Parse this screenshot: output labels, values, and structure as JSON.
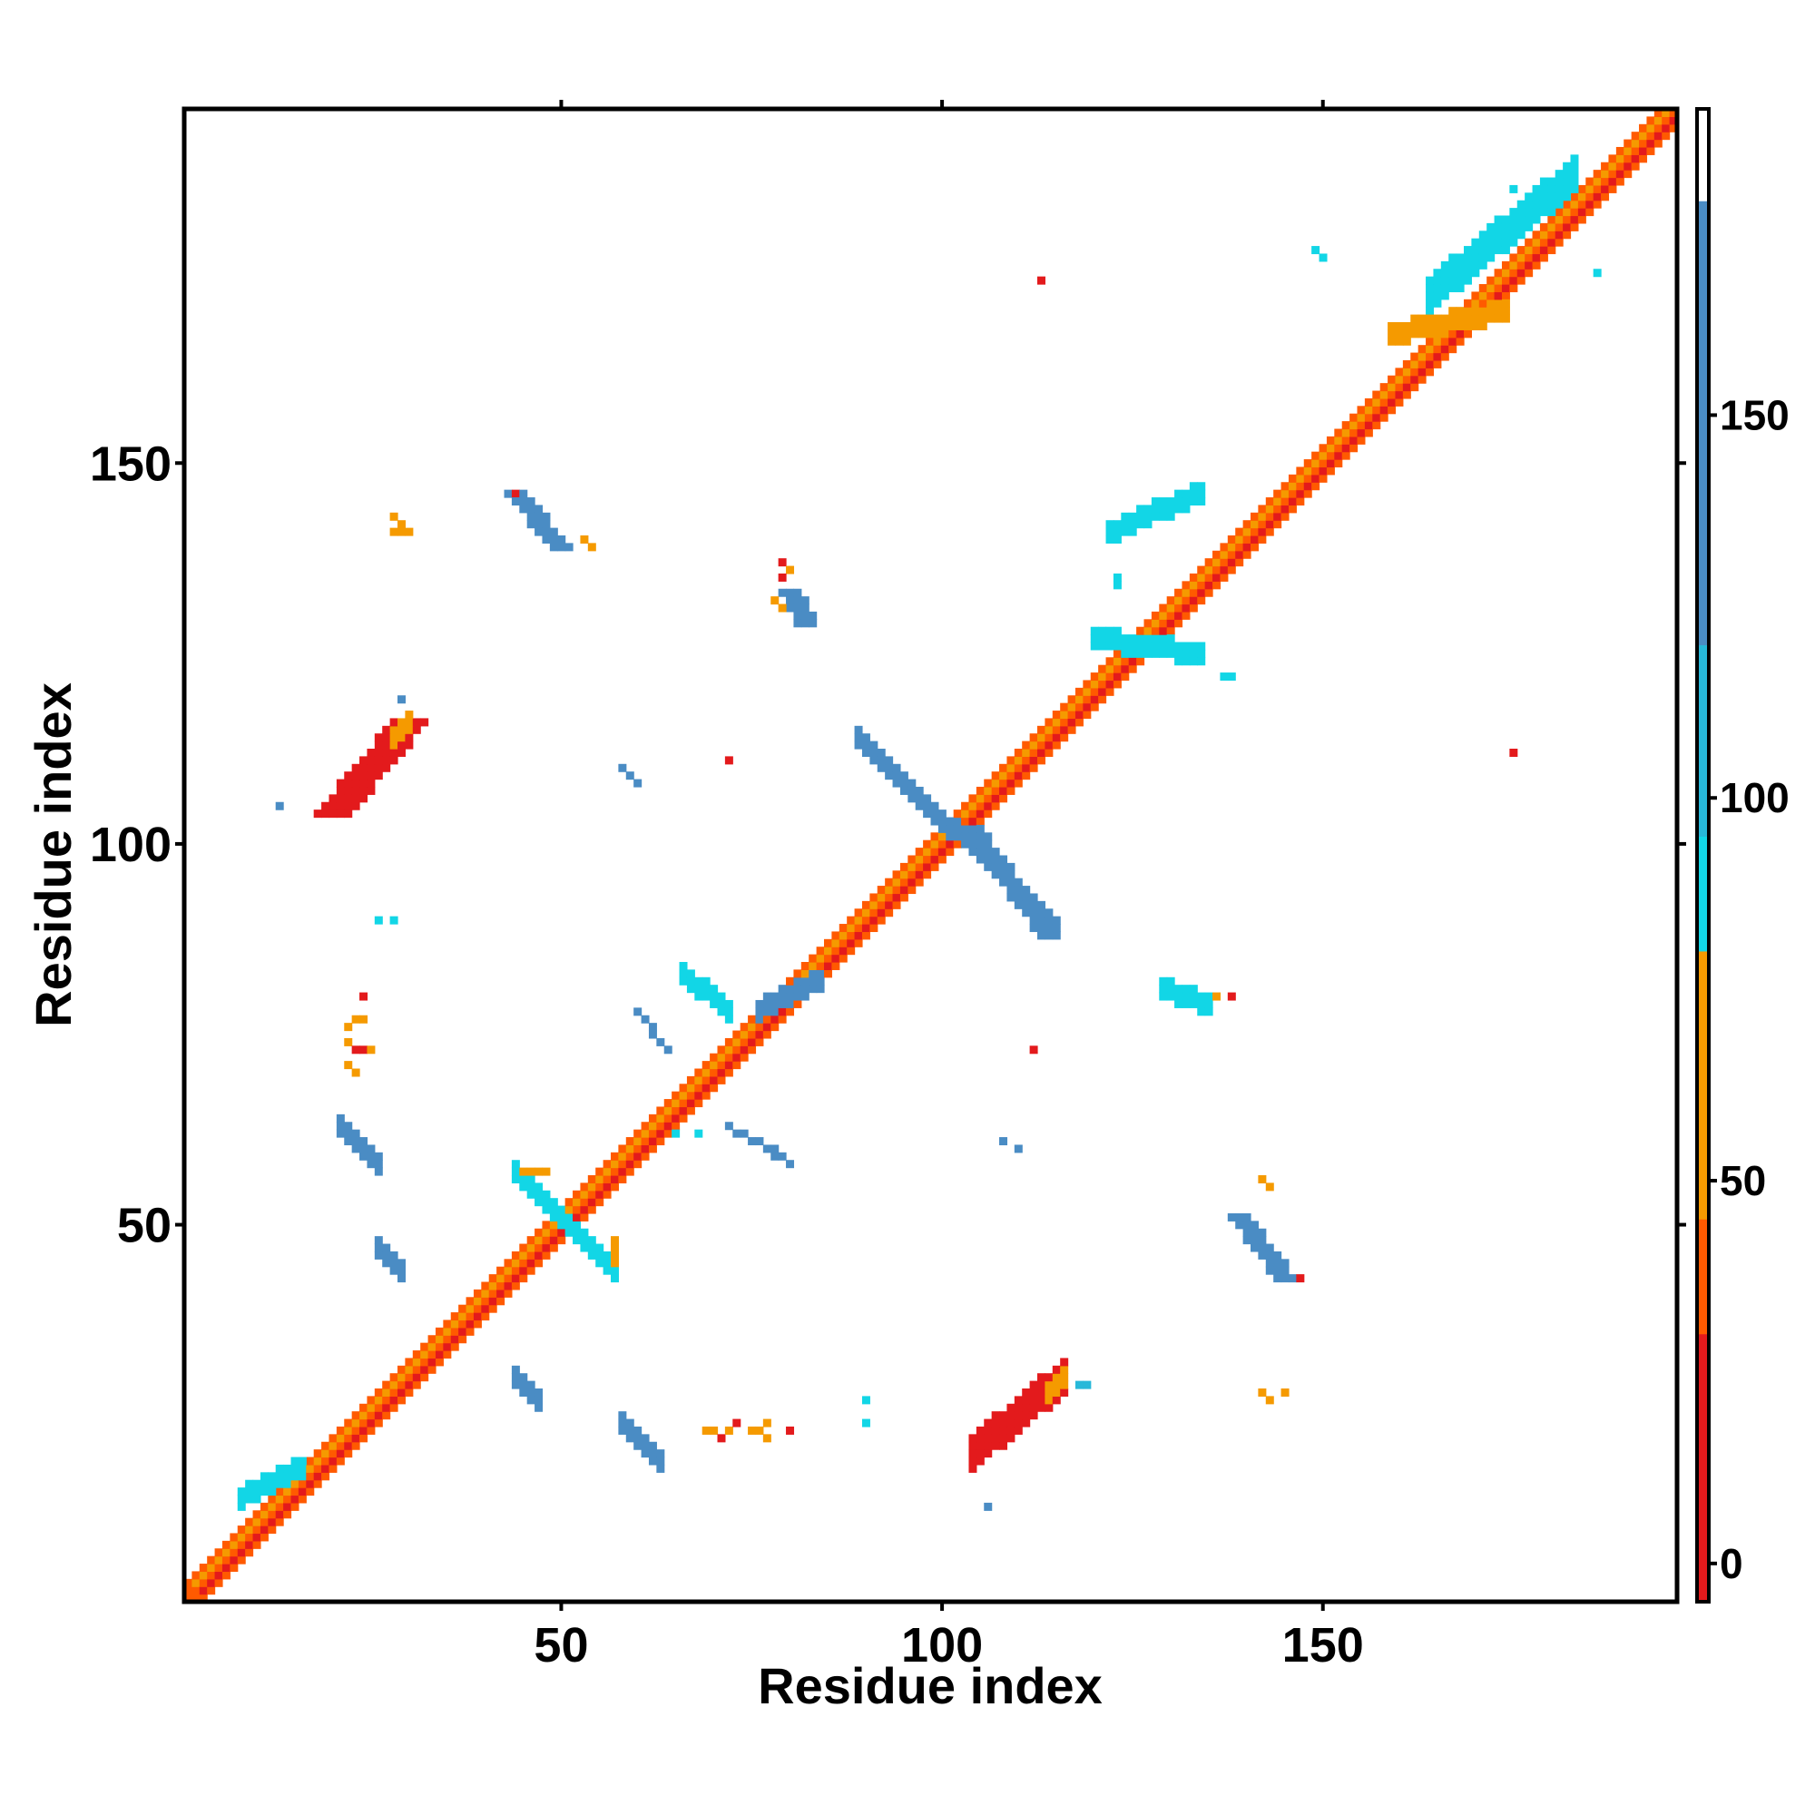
{
  "chart_data": {
    "type": "heatmap",
    "title": "",
    "xlabel": "Residue index",
    "ylabel": "Residue index",
    "xlim": [
      1,
      196
    ],
    "ylim": [
      1,
      196
    ],
    "x_ticks": [
      50,
      100,
      150
    ],
    "y_ticks": [
      50,
      100,
      150
    ],
    "colorbar": {
      "range": [
        -5,
        190
      ],
      "ticks": [
        0,
        50,
        100,
        150
      ],
      "bands": [
        {
          "from": -5,
          "to": 30,
          "color": "#e31a1c"
        },
        {
          "from": 30,
          "to": 45,
          "color": "#ff5a00"
        },
        {
          "from": 45,
          "to": 80,
          "color": "#f59a00"
        },
        {
          "from": 80,
          "to": 95,
          "color": "#12d6e6"
        },
        {
          "from": 95,
          "to": 120,
          "color": "#27b8d9"
        },
        {
          "from": 120,
          "to": 178,
          "color": "#4a8cc4"
        },
        {
          "from": 178,
          "to": 190,
          "color": "#ffffff"
        }
      ]
    },
    "palette": {
      "red": "#e31a1c",
      "orange_red": "#ff5a00",
      "orange": "#f59a00",
      "cyan": "#12d6e6",
      "teal": "#27b8d9",
      "steel": "#4a8cc4"
    },
    "contact_segments": [
      {
        "from": [
          1,
          1
        ],
        "to": [
          196,
          196
        ],
        "half_width": 2,
        "color": "orange_red"
      },
      {
        "from": [
          3,
          2
        ],
        "to": [
          196,
          195
        ],
        "half_width": 0,
        "color": "red"
      },
      {
        "from": [
          2,
          3
        ],
        "to": [
          195,
          196
        ],
        "half_width": 0,
        "color": "orange"
      },
      {
        "from": [
          8,
          14
        ],
        "to": [
          16,
          18
        ],
        "half_width": 1,
        "color": "cyan"
      },
      {
        "from": [
          120,
          127
        ],
        "to": [
          134,
          125
        ],
        "half_width": 1,
        "color": "cyan"
      },
      {
        "from": [
          164,
          172
        ],
        "to": [
          183,
          188
        ],
        "half_width": 2,
        "color": "cyan"
      },
      {
        "from": [
          159,
          167
        ],
        "to": [
          174,
          170
        ],
        "half_width": 1,
        "color": "orange"
      },
      {
        "from": [
          20,
          104
        ],
        "to": [
          30,
          116
        ],
        "half_width": 2,
        "color": "red"
      },
      {
        "from": [
          28,
          114
        ],
        "to": [
          30,
          116
        ],
        "half_width": 1,
        "color": "orange"
      },
      {
        "from": [
          104,
          20
        ],
        "to": [
          116,
          30
        ],
        "half_width": 2,
        "color": "red"
      },
      {
        "from": [
          114,
          28
        ],
        "to": [
          116,
          30
        ],
        "half_width": 1,
        "color": "orange"
      },
      {
        "from": [
          89,
          114
        ],
        "to": [
          115,
          89
        ],
        "half_width": 1,
        "color": "steel"
      },
      {
        "from": [
          104,
          102
        ],
        "to": [
          114,
          88
        ],
        "half_width": 1,
        "color": "steel"
      },
      {
        "from": [
          44,
          57
        ],
        "to": [
          57,
          44
        ],
        "half_width": 1,
        "color": "cyan"
      },
      {
        "from": [
          45,
          57
        ],
        "to": [
          48,
          57
        ],
        "half_width": 0,
        "color": "orange"
      },
      {
        "from": [
          57,
          45
        ],
        "to": [
          57,
          48
        ],
        "half_width": 0,
        "color": "orange"
      },
      {
        "from": [
          44,
          146
        ],
        "to": [
          50,
          139
        ],
        "half_width": 1,
        "color": "steel"
      },
      {
        "from": [
          139,
          51
        ],
        "to": [
          145,
          43
        ],
        "half_width": 1,
        "color": "steel"
      },
      {
        "from": [
          21,
          63
        ],
        "to": [
          26,
          58
        ],
        "half_width": 1,
        "color": "steel"
      },
      {
        "from": [
          58,
          24
        ],
        "to": [
          63,
          19
        ],
        "half_width": 1,
        "color": "steel"
      },
      {
        "from": [
          26,
          47
        ],
        "to": [
          29,
          44
        ],
        "half_width": 1,
        "color": "steel"
      },
      {
        "from": [
          44,
          30
        ],
        "to": [
          47,
          27
        ],
        "half_width": 1,
        "color": "steel"
      },
      {
        "from": [
          66,
          83
        ],
        "to": [
          72,
          78
        ],
        "half_width": 1,
        "color": "cyan"
      },
      {
        "from": [
          76,
          78
        ],
        "to": [
          84,
          82
        ],
        "half_width": 1,
        "color": "steel"
      },
      {
        "from": [
          72,
          63
        ],
        "to": [
          80,
          58
        ],
        "half_width": 0,
        "color": "steel"
      },
      {
        "from": [
          60,
          78
        ],
        "to": [
          64,
          73
        ],
        "half_width": 0,
        "color": "steel"
      },
      {
        "from": [
          80,
          133
        ],
        "to": [
          82,
          129
        ],
        "half_width": 1,
        "color": "steel"
      },
      {
        "from": [
          129,
          81
        ],
        "to": [
          135,
          79
        ],
        "half_width": 1,
        "color": "cyan"
      },
      {
        "from": [
          122,
          141
        ],
        "to": [
          134,
          146
        ],
        "half_width": 1,
        "color": "cyan"
      }
    ],
    "contact_cells": [
      {
        "x": 28,
        "y": 143,
        "color": "orange"
      },
      {
        "x": 29,
        "y": 142,
        "color": "orange"
      },
      {
        "x": 28,
        "y": 141,
        "color": "orange"
      },
      {
        "x": 29,
        "y": 141,
        "color": "orange"
      },
      {
        "x": 30,
        "y": 141,
        "color": "orange"
      },
      {
        "x": 53,
        "y": 140,
        "color": "orange"
      },
      {
        "x": 54,
        "y": 139,
        "color": "orange"
      },
      {
        "x": 44,
        "y": 146,
        "color": "red"
      },
      {
        "x": 79,
        "y": 137,
        "color": "red"
      },
      {
        "x": 80,
        "y": 136,
        "color": "orange"
      },
      {
        "x": 79,
        "y": 135,
        "color": "red"
      },
      {
        "x": 78,
        "y": 132,
        "color": "orange"
      },
      {
        "x": 79,
        "y": 131,
        "color": "orange"
      },
      {
        "x": 29,
        "y": 119,
        "color": "steel"
      },
      {
        "x": 13,
        "y": 105,
        "color": "steel"
      },
      {
        "x": 58,
        "y": 110,
        "color": "steel"
      },
      {
        "x": 59,
        "y": 109,
        "color": "steel"
      },
      {
        "x": 60,
        "y": 108,
        "color": "steel"
      },
      {
        "x": 72,
        "y": 111,
        "color": "red"
      },
      {
        "x": 113,
        "y": 174,
        "color": "red"
      },
      {
        "x": 175,
        "y": 112,
        "color": "red"
      },
      {
        "x": 137,
        "y": 122,
        "color": "cyan"
      },
      {
        "x": 138,
        "y": 122,
        "color": "cyan"
      },
      {
        "x": 123,
        "y": 135,
        "color": "cyan"
      },
      {
        "x": 123,
        "y": 134,
        "color": "cyan"
      },
      {
        "x": 175,
        "y": 186,
        "color": "cyan"
      },
      {
        "x": 186,
        "y": 175,
        "color": "cyan"
      },
      {
        "x": 26,
        "y": 90,
        "color": "cyan"
      },
      {
        "x": 28,
        "y": 90,
        "color": "cyan"
      },
      {
        "x": 24,
        "y": 80,
        "color": "red"
      },
      {
        "x": 23,
        "y": 77,
        "color": "orange"
      },
      {
        "x": 24,
        "y": 77,
        "color": "orange"
      },
      {
        "x": 22,
        "y": 76,
        "color": "orange"
      },
      {
        "x": 22,
        "y": 74,
        "color": "orange"
      },
      {
        "x": 23,
        "y": 73,
        "color": "red"
      },
      {
        "x": 24,
        "y": 73,
        "color": "red"
      },
      {
        "x": 25,
        "y": 73,
        "color": "orange"
      },
      {
        "x": 22,
        "y": 71,
        "color": "orange"
      },
      {
        "x": 23,
        "y": 70,
        "color": "orange"
      },
      {
        "x": 112,
        "y": 73,
        "color": "red"
      },
      {
        "x": 108,
        "y": 61,
        "color": "steel"
      },
      {
        "x": 110,
        "y": 60,
        "color": "steel"
      },
      {
        "x": 142,
        "y": 56,
        "color": "orange"
      },
      {
        "x": 143,
        "y": 55,
        "color": "orange"
      },
      {
        "x": 147,
        "y": 43,
        "color": "red"
      },
      {
        "x": 138,
        "y": 80,
        "color": "red"
      },
      {
        "x": 136,
        "y": 80,
        "color": "orange"
      },
      {
        "x": 142,
        "y": 28,
        "color": "orange"
      },
      {
        "x": 143,
        "y": 27,
        "color": "orange"
      },
      {
        "x": 145,
        "y": 28,
        "color": "orange"
      },
      {
        "x": 118,
        "y": 29,
        "color": "teal"
      },
      {
        "x": 119,
        "y": 29,
        "color": "teal"
      },
      {
        "x": 90,
        "y": 27,
        "color": "cyan"
      },
      {
        "x": 90,
        "y": 24,
        "color": "cyan"
      },
      {
        "x": 69,
        "y": 23,
        "color": "orange"
      },
      {
        "x": 70,
        "y": 23,
        "color": "orange"
      },
      {
        "x": 71,
        "y": 22,
        "color": "red"
      },
      {
        "x": 72,
        "y": 23,
        "color": "orange"
      },
      {
        "x": 73,
        "y": 24,
        "color": "red"
      },
      {
        "x": 75,
        "y": 23,
        "color": "orange"
      },
      {
        "x": 76,
        "y": 23,
        "color": "orange"
      },
      {
        "x": 77,
        "y": 24,
        "color": "orange"
      },
      {
        "x": 77,
        "y": 22,
        "color": "orange"
      },
      {
        "x": 80,
        "y": 23,
        "color": "red"
      },
      {
        "x": 106,
        "y": 13,
        "color": "steel"
      },
      {
        "x": 149,
        "y": 178,
        "color": "cyan"
      },
      {
        "x": 150,
        "y": 177,
        "color": "cyan"
      },
      {
        "x": 78,
        "y": 60,
        "color": "steel"
      },
      {
        "x": 80,
        "y": 58,
        "color": "steel"
      },
      {
        "x": 65,
        "y": 62,
        "color": "cyan"
      },
      {
        "x": 68,
        "y": 62,
        "color": "cyan"
      }
    ]
  }
}
